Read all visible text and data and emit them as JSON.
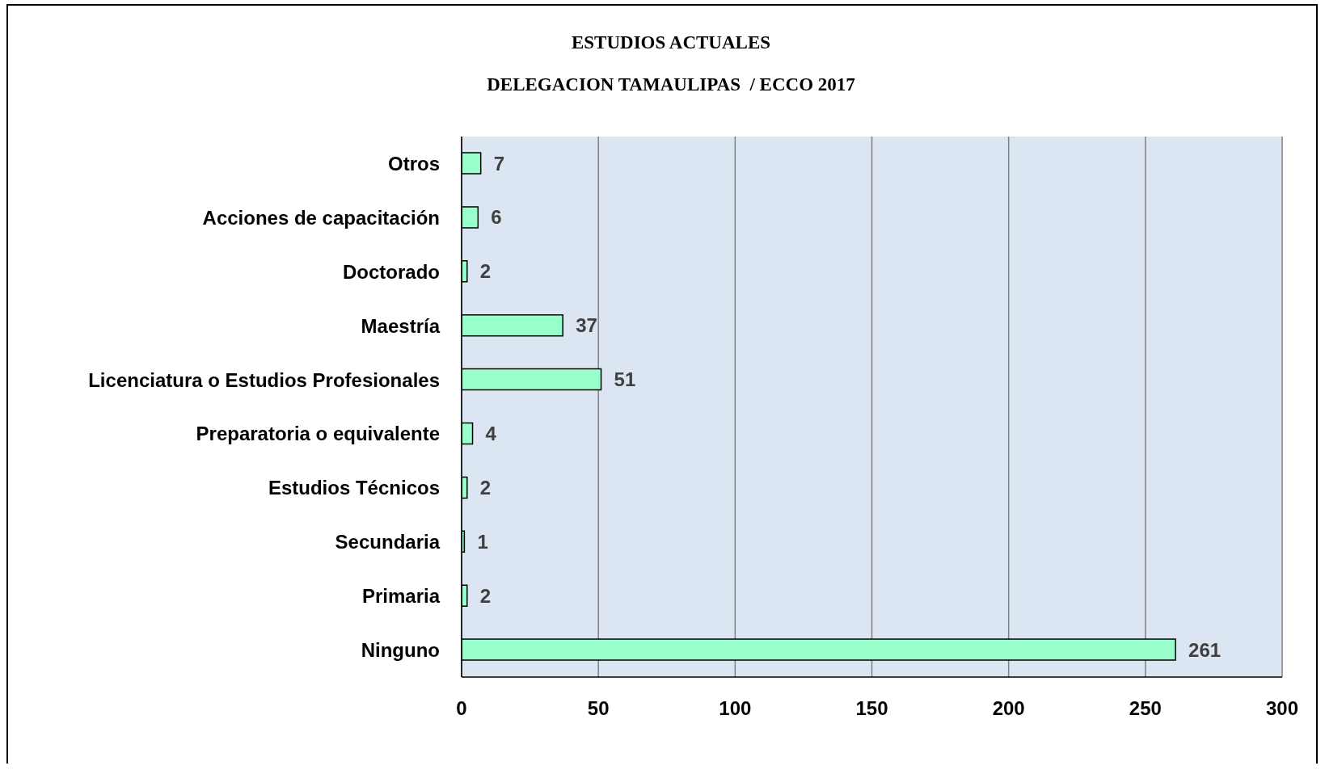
{
  "chart_data": {
    "type": "bar",
    "orientation": "horizontal",
    "title": "ESTUDIOS ACTUALES",
    "subtitle": "DELEGACION TAMAULIPAS  / ECCO 2017",
    "categories": [
      "Otros",
      "Acciones de capacitación",
      "Doctorado",
      "Maestría",
      "Licenciatura o Estudios Profesionales",
      "Preparatoria o equivalente",
      "Estudios Técnicos",
      "Secundaria",
      "Primaria",
      "Ninguno"
    ],
    "values": [
      7,
      6,
      2,
      37,
      51,
      4,
      2,
      1,
      2,
      261
    ],
    "color": "#99ffcc",
    "xlim": [
      0,
      300
    ],
    "xticks": [
      0,
      50,
      100,
      150,
      200,
      250,
      300
    ],
    "grid": "x",
    "data_labels": true
  }
}
